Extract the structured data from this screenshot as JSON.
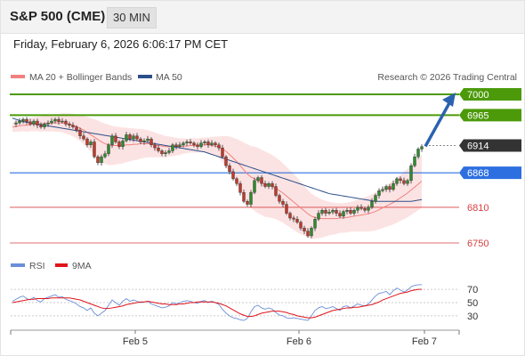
{
  "header": {
    "title": "S&P 500 (CME)",
    "timeframe": "30 MIN"
  },
  "datetime": "Friday, February 6, 2026 6:06:17 PM CET",
  "legend": {
    "ma20": "MA 20 + Bollinger Bands",
    "ma50": "MA 50",
    "credit": "Research © 2026 Trading Central",
    "rsi": "RSI",
    "ma9": "9MA"
  },
  "colors": {
    "ma20": "#f08080",
    "bollinger_fill": "#fbd9d9",
    "ma50": "#2c4f8a",
    "bull_candle": "#2e8b2e",
    "bear_candle": "#c0392b",
    "resistance": "#4c9a0a",
    "current": "#333333",
    "pivot": "#2d6fe0",
    "support": "#d94040",
    "arrow": "#2a62b0",
    "rsi": "#6b8fd8",
    "rsi_ma": "#e0141a"
  },
  "chart_data": [
    {
      "type": "candlestick",
      "title": "S&P 500 (CME) 30 MIN",
      "x_labels": [
        "Feb 5",
        "Feb 6",
        "Feb 7"
      ],
      "ylim": [
        6740,
        7010
      ],
      "levels": [
        {
          "label": "7000",
          "value": 7000,
          "kind": "resistance"
        },
        {
          "label": "6965",
          "value": 6965,
          "kind": "resistance"
        },
        {
          "label": "6914",
          "value": 6914,
          "kind": "current"
        },
        {
          "label": "6868",
          "value": 6868,
          "kind": "pivot"
        },
        {
          "label": "6810",
          "value": 6810,
          "kind": "support"
        },
        {
          "label": "6750",
          "value": 6750,
          "kind": "support"
        }
      ],
      "close_series": [
        6950,
        6952,
        6955,
        6958,
        6954,
        6950,
        6955,
        6948,
        6945,
        6950,
        6952,
        6955,
        6958,
        6954,
        6955,
        6950,
        6948,
        6945,
        6940,
        6930,
        6925,
        6915,
        6920,
        6895,
        6885,
        6895,
        6900,
        6915,
        6930,
        6920,
        6912,
        6922,
        6932,
        6925,
        6930,
        6925,
        6920,
        6922,
        6925,
        6915,
        6910,
        6905,
        6900,
        6902,
        6905,
        6915,
        6912,
        6915,
        6918,
        6920,
        6918,
        6915,
        6912,
        6918,
        6920,
        6915,
        6918,
        6915,
        6910,
        6895,
        6880,
        6870,
        6858,
        6850,
        6835,
        6820,
        6815,
        6835,
        6855,
        6860,
        6850,
        6845,
        6850,
        6845,
        6830,
        6820,
        6815,
        6800,
        6792,
        6790,
        6785,
        6775,
        6770,
        6762,
        6775,
        6790,
        6800,
        6805,
        6800,
        6802,
        6805,
        6800,
        6795,
        6803,
        6805,
        6800,
        6805,
        6810,
        6808,
        6805,
        6810,
        6820,
        6830,
        6838,
        6840,
        6845,
        6840,
        6850,
        6858,
        6855,
        6850,
        6855,
        6880,
        6895,
        6908,
        6912
      ],
      "ma20_series": [
        6945,
        6946,
        6947,
        6948,
        6948,
        6949,
        6950,
        6950,
        6950,
        6951,
        6951,
        6952,
        6952,
        6952,
        6952,
        6951,
        6950,
        6948,
        6946,
        6943,
        6940,
        6936,
        6932,
        6928,
        6924,
        6920,
        6917,
        6915,
        6914,
        6914,
        6914,
        6914,
        6915,
        6915,
        6916,
        6916,
        6917,
        6917,
        6917,
        6916,
        6915,
        6914,
        6913,
        6912,
        6912,
        6912,
        6912,
        6912,
        6913,
        6913,
        6914,
        6914,
        6914,
        6915,
        6915,
        6915,
        6914,
        6913,
        6911,
        6908,
        6904,
        6899,
        6893,
        6887,
        6880,
        6873,
        6866,
        6861,
        6858,
        6855,
        6852,
        6849,
        6847,
        6845,
        6842,
        6838,
        6834,
        6829,
        6824,
        6819,
        6814,
        6809,
        6804,
        6799,
        6795,
        6793,
        6792,
        6791,
        6791,
        6791,
        6791,
        6791,
        6792,
        6792,
        6793,
        6794,
        6795,
        6796,
        6797,
        6798,
        6799,
        6801,
        6803,
        6806,
        6809,
        6812,
        6815,
        6818,
        6822,
        6826,
        6830,
        6834,
        6839,
        6844,
        6849,
        6854
      ],
      "ma50_series": [
        6960,
        6958,
        6956,
        6954,
        6953,
        6952,
        6951,
        6950,
        6949,
        6948,
        6947,
        6946,
        6945,
        6944,
        6943,
        6942,
        6941,
        6940,
        6939,
        6938,
        6937,
        6936,
        6935,
        6934,
        6933,
        6932,
        6931,
        6930,
        6929,
        6928,
        6927,
        6926,
        6925,
        6924,
        6923,
        6922,
        6921,
        6920,
        6919,
        6918,
        6917,
        6916,
        6915,
        6914,
        6913,
        6912,
        6911,
        6910,
        6909,
        6908,
        6907,
        6906,
        6905,
        6904,
        6903,
        6901,
        6899,
        6897,
        6895,
        6893,
        6891,
        6889,
        6887,
        6885,
        6883,
        6881,
        6879,
        6877,
        6875,
        6873,
        6871,
        6869,
        6867,
        6865,
        6863,
        6861,
        6859,
        6857,
        6855,
        6853,
        6851,
        6849,
        6847,
        6845,
        6843,
        6841,
        6839,
        6837,
        6835,
        6833,
        6832,
        6831,
        6830,
        6829,
        6828,
        6827,
        6826,
        6825,
        6824,
        6823,
        6822,
        6821,
        6820,
        6820,
        6820,
        6820,
        6820,
        6820,
        6820,
        6820,
        6820,
        6820,
        6820,
        6821,
        6822,
        6823
      ],
      "bollinger_width_series": [
        8,
        9,
        10,
        10,
        11,
        11,
        12,
        12,
        13,
        13,
        14,
        14,
        15,
        15,
        16,
        17,
        18,
        19,
        20,
        22,
        24,
        26,
        28,
        30,
        32,
        33,
        34,
        34,
        33,
        32,
        31,
        30,
        29,
        28,
        27,
        26,
        25,
        24,
        23,
        22,
        21,
        20,
        19,
        18,
        17,
        16,
        15,
        14,
        13,
        12,
        12,
        12,
        12,
        12,
        12,
        13,
        14,
        16,
        18,
        22,
        26,
        30,
        34,
        38,
        42,
        46,
        50,
        52,
        54,
        55,
        55,
        55,
        54,
        53,
        52,
        51,
        50,
        49,
        48,
        47,
        46,
        44,
        42,
        40,
        38,
        36,
        34,
        32,
        30,
        28,
        27,
        26,
        25,
        25,
        25,
        25,
        26,
        27,
        28,
        29,
        30,
        31,
        32,
        33,
        34,
        35,
        36,
        37,
        38,
        39,
        40,
        41,
        42,
        43,
        44,
        45
      ],
      "forecast": {
        "from": 6914,
        "to": 7000
      }
    },
    {
      "type": "line",
      "title": "RSI",
      "ylim": [
        15,
        85
      ],
      "y_ticks": [
        70,
        50,
        30
      ],
      "series": [
        {
          "name": "RSI",
          "values": [
            52,
            55,
            58,
            60,
            56,
            54,
            58,
            53,
            51,
            56,
            58,
            60,
            62,
            58,
            59,
            55,
            53,
            51,
            48,
            44,
            42,
            38,
            42,
            34,
            30,
            34,
            38,
            46,
            54,
            50,
            46,
            52,
            56,
            52,
            54,
            52,
            50,
            51,
            52,
            48,
            46,
            44,
            42,
            43,
            45,
            50,
            48,
            50,
            52,
            53,
            52,
            50,
            49,
            52,
            53,
            50,
            52,
            50,
            47,
            40,
            34,
            30,
            27,
            26,
            24,
            23,
            26,
            36,
            44,
            46,
            42,
            40,
            42,
            40,
            35,
            31,
            30,
            27,
            26,
            27,
            26,
            25,
            24,
            23,
            30,
            38,
            42,
            44,
            41,
            42,
            44,
            41,
            38,
            44,
            45,
            42,
            45,
            48,
            46,
            45,
            48,
            54,
            60,
            64,
            65,
            67,
            62,
            68,
            72,
            69,
            66,
            69,
            74,
            76,
            77,
            77
          ]
        },
        {
          "name": "9MA",
          "values": [
            50,
            51,
            52,
            53,
            54,
            55,
            55,
            56,
            56,
            56,
            56,
            57,
            57,
            57,
            57,
            57,
            57,
            56,
            55,
            54,
            52,
            50,
            48,
            46,
            44,
            42,
            41,
            41,
            42,
            43,
            44,
            45,
            47,
            48,
            49,
            50,
            51,
            51,
            52,
            51,
            50,
            49,
            48,
            48,
            47,
            47,
            47,
            48,
            48,
            49,
            50,
            50,
            51,
            51,
            51,
            51,
            51,
            50,
            49,
            47,
            45,
            42,
            39,
            36,
            33,
            31,
            29,
            29,
            30,
            32,
            34,
            35,
            36,
            37,
            37,
            37,
            36,
            35,
            33,
            32,
            30,
            29,
            28,
            27,
            27,
            28,
            30,
            32,
            34,
            36,
            38,
            39,
            40,
            41,
            42,
            42,
            43,
            43,
            44,
            45,
            46,
            47,
            49,
            51,
            54,
            56,
            58,
            60,
            62,
            64,
            65,
            66,
            68,
            69,
            70,
            70
          ]
        }
      ]
    }
  ]
}
